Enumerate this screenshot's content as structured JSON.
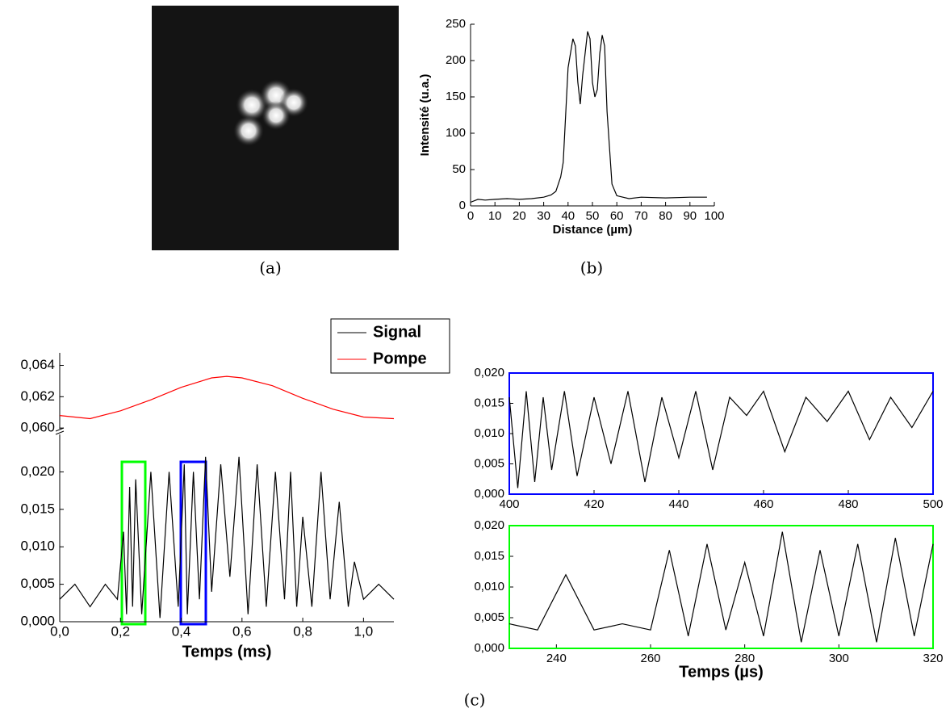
{
  "captions": [
    "(a)",
    "(b)",
    "(c)"
  ],
  "chart_data": [
    {
      "type": "line",
      "xlabel": "Distance (µm)",
      "ylabel": "Intensité (u.a.)",
      "x": [
        0,
        3,
        6,
        10,
        15,
        20,
        25,
        30,
        33,
        35,
        37,
        38,
        40,
        42,
        43,
        44,
        45,
        46,
        48,
        49,
        50,
        51,
        52,
        53,
        54,
        55,
        56,
        58,
        60,
        65,
        70,
        80,
        90,
        97
      ],
      "values": [
        5,
        9,
        8,
        9,
        10,
        9,
        10,
        12,
        15,
        20,
        40,
        60,
        190,
        230,
        220,
        170,
        140,
        180,
        240,
        230,
        170,
        150,
        160,
        210,
        235,
        220,
        130,
        30,
        14,
        10,
        12,
        11,
        12,
        12
      ],
      "color": "#000000",
      "xlim": [
        0,
        100
      ],
      "ylim": [
        0,
        250
      ],
      "xticks": [
        0,
        10,
        20,
        30,
        40,
        50,
        60,
        70,
        80,
        90,
        100
      ],
      "yticks": [
        0,
        50,
        100,
        150,
        200,
        250
      ],
      "grid": false
    },
    {
      "type": "line",
      "xlabel": "Temps (ms)",
      "xlim": [
        0,
        1.1
      ],
      "ylim": [
        0,
        0.025
      ],
      "y2lim": [
        0.0598,
        0.0648
      ],
      "xticks": [
        {
          "value": 0,
          "label": "0,0"
        },
        {
          "value": 0.2,
          "label": "0,2"
        },
        {
          "value": 0.4,
          "label": "0,4"
        },
        {
          "value": 0.6,
          "label": "0,6"
        },
        {
          "value": 0.8,
          "label": "0,8"
        },
        {
          "value": 1,
          "label": "1,0"
        }
      ],
      "yticks": [
        {
          "value": 0,
          "label": "0,000"
        },
        {
          "value": 0.005,
          "label": "0,005"
        },
        {
          "value": 0.01,
          "label": "0,010"
        },
        {
          "value": 0.015,
          "label": "0,015"
        },
        {
          "value": 0.02,
          "label": "0,020"
        }
      ],
      "y2ticks": [
        {
          "value": 0.06,
          "label": "0,060"
        },
        {
          "value": 0.062,
          "label": "0,062"
        },
        {
          "value": 0.064,
          "label": "0,064"
        }
      ],
      "legend": "top-right",
      "grid": false,
      "series": [
        {
          "name": "Signal",
          "color": "#000000",
          "x": [
            0,
            0.05,
            0.1,
            0.15,
            0.19,
            0.21,
            0.22,
            0.23,
            0.24,
            0.25,
            0.27,
            0.3,
            0.33,
            0.36,
            0.39,
            0.41,
            0.42,
            0.44,
            0.46,
            0.48,
            0.5,
            0.53,
            0.56,
            0.59,
            0.62,
            0.65,
            0.68,
            0.71,
            0.74,
            0.76,
            0.78,
            0.8,
            0.83,
            0.86,
            0.89,
            0.92,
            0.95,
            0.97,
            1.0,
            1.05,
            1.1
          ],
          "values": [
            0.003,
            0.005,
            0.002,
            0.005,
            0.003,
            0.012,
            0.001,
            0.018,
            0.002,
            0.019,
            0.001,
            0.02,
            0.0005,
            0.02,
            0.002,
            0.021,
            0.001,
            0.02,
            0.003,
            0.022,
            0.004,
            0.021,
            0.006,
            0.022,
            0.001,
            0.021,
            0.002,
            0.02,
            0.003,
            0.02,
            0.002,
            0.014,
            0.002,
            0.02,
            0.003,
            0.016,
            0.002,
            0.008,
            0.003,
            0.005,
            0.003
          ]
        },
        {
          "name": "Pompe",
          "color": "#ff0000",
          "axis": "y2",
          "x": [
            0,
            0.1,
            0.2,
            0.3,
            0.4,
            0.5,
            0.55,
            0.6,
            0.7,
            0.8,
            0.9,
            1.0,
            1.1
          ],
          "values": [
            0.0608,
            0.0606,
            0.0611,
            0.0618,
            0.0626,
            0.0632,
            0.0633,
            0.0632,
            0.0627,
            0.0619,
            0.0612,
            0.0607,
            0.0606
          ]
        }
      ]
    },
    {
      "type": "line",
      "xlim": [
        400,
        500
      ],
      "ylim": [
        0,
        0.02
      ],
      "frame_color": "#0000ff",
      "grid": false,
      "xticks": [
        400,
        420,
        440,
        460,
        480,
        500
      ],
      "yticks": [
        {
          "value": 0,
          "label": "0,000"
        },
        {
          "value": 0.005,
          "label": "0,005"
        },
        {
          "value": 0.01,
          "label": "0,010"
        },
        {
          "value": 0.015,
          "label": "0,015"
        },
        {
          "value": 0.02,
          "label": "0,020"
        }
      ],
      "series": [
        {
          "color": "#000000",
          "x": [
            400,
            402,
            404,
            406,
            408,
            410,
            413,
            416,
            420,
            424,
            428,
            432,
            436,
            440,
            444,
            448,
            452,
            456,
            460,
            465,
            470,
            475,
            480,
            485,
            490,
            495,
            500
          ],
          "values": [
            0.016,
            0.001,
            0.017,
            0.002,
            0.016,
            0.004,
            0.017,
            0.003,
            0.016,
            0.005,
            0.017,
            0.002,
            0.016,
            0.006,
            0.017,
            0.004,
            0.016,
            0.013,
            0.017,
            0.007,
            0.016,
            0.012,
            0.017,
            0.009,
            0.016,
            0.011,
            0.017
          ]
        }
      ]
    },
    {
      "type": "line",
      "xlabel": "Temps (µs)",
      "xlim": [
        230,
        320
      ],
      "ylim": [
        0,
        0.02
      ],
      "frame_color": "#00ff00",
      "grid": false,
      "xticks": [
        240,
        260,
        280,
        300,
        320
      ],
      "yticks": [
        {
          "value": 0,
          "label": "0,000"
        },
        {
          "value": 0.005,
          "label": "0,005"
        },
        {
          "value": 0.01,
          "label": "0,010"
        },
        {
          "value": 0.015,
          "label": "0,015"
        },
        {
          "value": 0.02,
          "label": "0,020"
        }
      ],
      "series": [
        {
          "color": "#000000",
          "x": [
            230,
            236,
            242,
            248,
            254,
            260,
            264,
            268,
            272,
            276,
            280,
            284,
            288,
            292,
            296,
            300,
            304,
            308,
            312,
            316,
            320
          ],
          "values": [
            0.004,
            0.003,
            0.012,
            0.003,
            0.004,
            0.003,
            0.016,
            0.002,
            0.017,
            0.003,
            0.014,
            0.002,
            0.019,
            0.001,
            0.016,
            0.002,
            0.017,
            0.001,
            0.018,
            0.002,
            0.017
          ]
        }
      ]
    }
  ]
}
